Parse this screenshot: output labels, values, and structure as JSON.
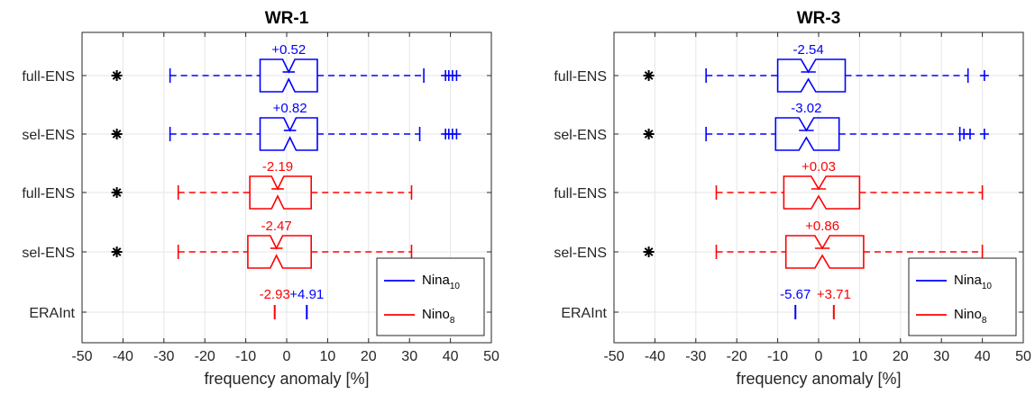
{
  "chart_data": [
    {
      "type": "boxplot",
      "title": "WR-1",
      "xlabel": "frequency anomaly [%]",
      "ylabel": "",
      "xlim": [
        -50,
        50
      ],
      "xticks": [
        "-50",
        "-40",
        "-30",
        "-20",
        "-10",
        "0",
        "10",
        "20",
        "30",
        "40",
        "50"
      ],
      "categories": [
        "full-ENS",
        "sel-ENS",
        "full-ENS",
        "sel-ENS",
        "ERAInt"
      ],
      "grid": true,
      "legend": {
        "position": "bottom-right",
        "entries": [
          {
            "name": "Nina",
            "sub": "10",
            "color": "#0000ff"
          },
          {
            "name": "Nino",
            "sub": "8",
            "color": "#ff0000"
          }
        ]
      },
      "boxes": [
        {
          "category": "full-ENS",
          "series": "Nina",
          "color": "#0000ff",
          "whisker_low": -28.5,
          "q1": -6.5,
          "median": 0.5,
          "q3": 7.5,
          "whisker_high": 33.5,
          "notch_low": -1.0,
          "notch_high": 2.0,
          "outliers": [
            -41.5,
            38.8,
            39.6,
            40.5,
            41.5
          ],
          "label": "+0.52"
        },
        {
          "category": "sel-ENS",
          "series": "Nina",
          "color": "#0000ff",
          "whisker_low": -28.5,
          "q1": -6.5,
          "median": 0.8,
          "q3": 7.5,
          "whisker_high": 32.5,
          "notch_low": -0.7,
          "notch_high": 2.3,
          "outliers": [
            -41.5,
            38.8,
            39.6,
            40.5,
            41.5
          ],
          "label": "+0.82"
        },
        {
          "category": "full-ENS",
          "series": "Nino",
          "color": "#ff0000",
          "whisker_low": -26.5,
          "q1": -9.0,
          "median": -2.2,
          "q3": 6.0,
          "whisker_high": 30.5,
          "notch_low": -3.7,
          "notch_high": -0.7,
          "outliers": [
            -41.5
          ],
          "label": "-2.19"
        },
        {
          "category": "sel-ENS",
          "series": "Nino",
          "color": "#ff0000",
          "whisker_low": -26.5,
          "q1": -9.5,
          "median": -2.5,
          "q3": 6.0,
          "whisker_high": 30.5,
          "notch_low": -4.0,
          "notch_high": -1.0,
          "outliers": [
            -41.5
          ],
          "label": "-2.47"
        }
      ],
      "observations": [
        {
          "category": "ERAInt",
          "series": "Nino",
          "color": "#ff0000",
          "value": -2.93,
          "label": "-2.93"
        },
        {
          "category": "ERAInt",
          "series": "Nina",
          "color": "#0000ff",
          "value": 4.91,
          "label": "+4.91"
        }
      ]
    },
    {
      "type": "boxplot",
      "title": "WR-3",
      "xlabel": "frequency anomaly [%]",
      "ylabel": "",
      "xlim": [
        -50,
        50
      ],
      "xticks": [
        "-50",
        "-40",
        "-30",
        "-20",
        "-10",
        "0",
        "10",
        "20",
        "30",
        "40",
        "50"
      ],
      "categories": [
        "full-ENS",
        "sel-ENS",
        "full-ENS",
        "sel-ENS",
        "ERAInt"
      ],
      "grid": true,
      "legend": {
        "position": "bottom-right",
        "entries": [
          {
            "name": "Nina",
            "sub": "10",
            "color": "#0000ff"
          },
          {
            "name": "Nino",
            "sub": "8",
            "color": "#ff0000"
          }
        ]
      },
      "boxes": [
        {
          "category": "full-ENS",
          "series": "Nina",
          "color": "#0000ff",
          "whisker_low": -27.5,
          "q1": -10.0,
          "median": -2.5,
          "q3": 6.5,
          "whisker_high": 36.5,
          "notch_low": -4.3,
          "notch_high": -0.7,
          "outliers": [
            -41.5,
            40.5
          ],
          "label": "-2.54"
        },
        {
          "category": "sel-ENS",
          "series": "Nina",
          "color": "#0000ff",
          "whisker_low": -27.5,
          "q1": -10.5,
          "median": -3.0,
          "q3": 5.0,
          "whisker_high": 34.5,
          "notch_low": -4.8,
          "notch_high": -1.2,
          "outliers": [
            -41.5,
            35.5,
            37.0,
            40.5
          ],
          "label": "-3.02"
        },
        {
          "category": "full-ENS",
          "series": "Nino",
          "color": "#ff0000",
          "whisker_low": -25.0,
          "q1": -8.5,
          "median": 0.0,
          "q3": 10.0,
          "whisker_high": 40.0,
          "notch_low": -1.8,
          "notch_high": 1.8,
          "outliers": [],
          "label": "+0.03"
        },
        {
          "category": "sel-ENS",
          "series": "Nino",
          "color": "#ff0000",
          "whisker_low": -25.0,
          "q1": -8.0,
          "median": 0.9,
          "q3": 11.0,
          "whisker_high": 40.0,
          "notch_low": -0.9,
          "notch_high": 2.7,
          "outliers": [
            -41.5
          ],
          "label": "+0.86"
        }
      ],
      "observations": [
        {
          "category": "ERAInt",
          "series": "Nina",
          "color": "#0000ff",
          "value": -5.67,
          "label": "-5.67"
        },
        {
          "category": "ERAInt",
          "series": "Nino",
          "color": "#ff0000",
          "value": 3.71,
          "label": "+3.71"
        }
      ]
    }
  ]
}
